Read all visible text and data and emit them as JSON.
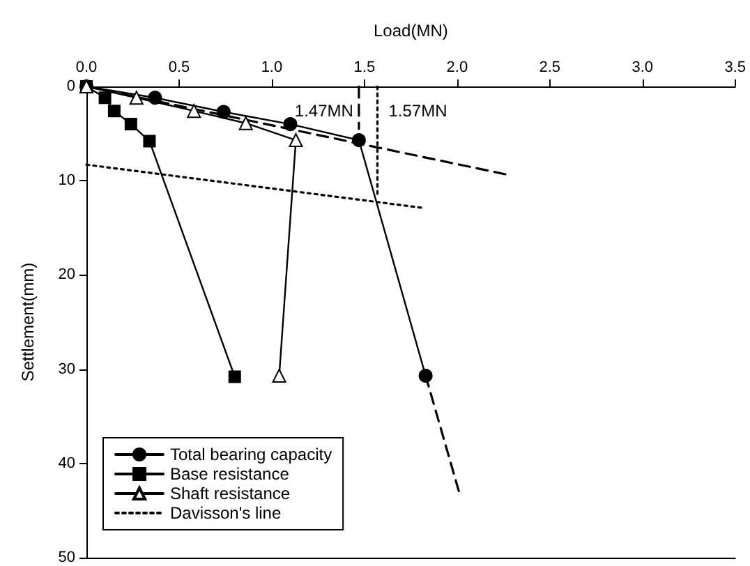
{
  "chart_data": {
    "type": "line",
    "xlabel": "Load(MN)",
    "ylabel": "Settlement(mm)",
    "xlim": [
      0,
      3.5
    ],
    "xticks": [
      {
        "value": 0,
        "label": "0.0"
      },
      {
        "value": 0.5,
        "label": "0.5"
      },
      {
        "value": 1,
        "label": "1.0"
      },
      {
        "value": 1.5,
        "label": "1.5"
      },
      {
        "value": 2,
        "label": "2.0"
      },
      {
        "value": 2.5,
        "label": "2.5"
      },
      {
        "value": 3,
        "label": "3.0"
      },
      {
        "value": 3.5,
        "label": "3.5"
      }
    ],
    "ylim": [
      50,
      0
    ],
    "yticks": [
      0,
      10,
      20,
      30,
      40,
      50
    ],
    "grid": false,
    "legend": "bottom left",
    "series": [
      {
        "name": "Total bearing capacity",
        "color": "#000000",
        "marker": "circle",
        "line_style": "solid",
        "x": [
          0,
          0.37,
          0.74,
          1.1,
          1.47,
          1.83
        ],
        "values": [
          0,
          1.2,
          2.7,
          4.0,
          5.7,
          30.7
        ]
      },
      {
        "name": "Base resistance",
        "color": "#000000",
        "marker": "square",
        "line_style": "solid",
        "x": [
          0,
          0.1,
          0.15,
          0.24,
          0.34,
          0.8
        ],
        "values": [
          0,
          1.2,
          2.6,
          4.0,
          5.8,
          30.8
        ]
      },
      {
        "name": "Shaft resistance",
        "color": "#000000",
        "marker": "triangle",
        "line_style": "solid",
        "x": [
          0,
          0.27,
          0.58,
          0.86,
          1.13,
          1.04
        ],
        "values": [
          0,
          1.2,
          2.6,
          3.9,
          5.7,
          30.7
        ]
      },
      {
        "name": "Davisson's line",
        "color": "#000000",
        "marker": "none",
        "line_style": "dotted",
        "x": [
          0,
          1.82
        ],
        "values": [
          8.3,
          12.9
        ]
      },
      {
        "color": "#000000",
        "marker": "none",
        "line_style": "dashed",
        "x": [
          0,
          2.28
        ],
        "values": [
          0,
          9.4
        ]
      },
      {
        "color": "#000000",
        "marker": "none",
        "line_style": "dashed",
        "x": [
          1.83,
          2.01
        ],
        "values": [
          30.7,
          43
        ]
      },
      {
        "color": "#000000",
        "marker": "none",
        "line_style": "dashed",
        "x": [
          1.47,
          1.47
        ],
        "values": [
          0,
          4.5
        ]
      },
      {
        "color": "#000000",
        "marker": "none",
        "line_style": "dotted",
        "x": [
          1.57,
          1.57
        ],
        "values": [
          0,
          11.5
        ]
      }
    ],
    "annotations": [
      {
        "text": "1.47MN",
        "x": 1.47,
        "y": 2.6
      },
      {
        "text": "1.57MN",
        "x": 1.57,
        "y": 2.6
      }
    ]
  }
}
